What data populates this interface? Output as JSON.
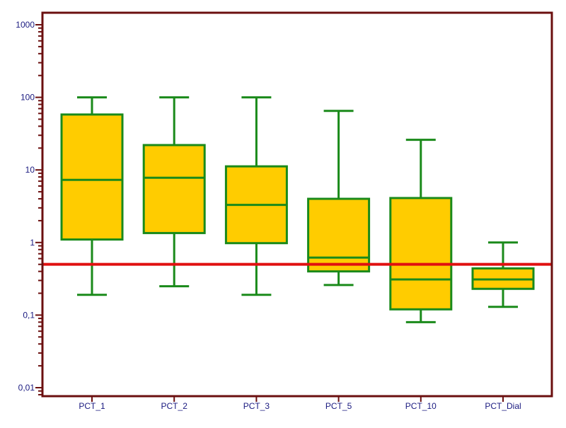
{
  "chart_data": {
    "type": "boxplot",
    "y_scale": "log10",
    "ylim": [
      0.0075,
      1800
    ],
    "y_ticks": [
      {
        "value": 0.01,
        "label": "0,01"
      },
      {
        "value": 0.1,
        "label": "0,1"
      },
      {
        "value": 1,
        "label": "1"
      },
      {
        "value": 10,
        "label": "10"
      },
      {
        "value": 100,
        "label": "100"
      },
      {
        "value": 1000,
        "label": "1000"
      }
    ],
    "categories": [
      "PCT_1",
      "PCT_2",
      "PCT_3",
      "PCT_5",
      "PCT_10",
      "PCT_Dial"
    ],
    "boxes": [
      {
        "category": "PCT_1",
        "min": 0.19,
        "q1": 1.1,
        "median": 7.3,
        "q3": 58,
        "max": 100
      },
      {
        "category": "PCT_2",
        "min": 0.25,
        "q1": 1.35,
        "median": 7.8,
        "q3": 22,
        "max": 100
      },
      {
        "category": "PCT_3",
        "min": 0.19,
        "q1": 0.98,
        "median": 3.3,
        "q3": 11.2,
        "max": 100
      },
      {
        "category": "PCT_5",
        "min": 0.26,
        "q1": 0.4,
        "median": 0.62,
        "q3": 4.0,
        "max": 65
      },
      {
        "category": "PCT_10",
        "min": 0.08,
        "q1": 0.12,
        "median": 0.31,
        "q3": 4.1,
        "max": 26
      },
      {
        "category": "PCT_Dial",
        "min": 0.13,
        "q1": 0.23,
        "median": 0.31,
        "q3": 0.44,
        "max": 1.0
      }
    ],
    "reference_line": {
      "value": 0.5,
      "color": "#e01010"
    },
    "grid": false,
    "legend": "none",
    "colors": {
      "box_fill": "#ffcc00",
      "box_stroke": "#1a8a1a",
      "frame": "#6b0f0f",
      "tick_label": "#1a1a80",
      "background": "#ffffff"
    }
  }
}
